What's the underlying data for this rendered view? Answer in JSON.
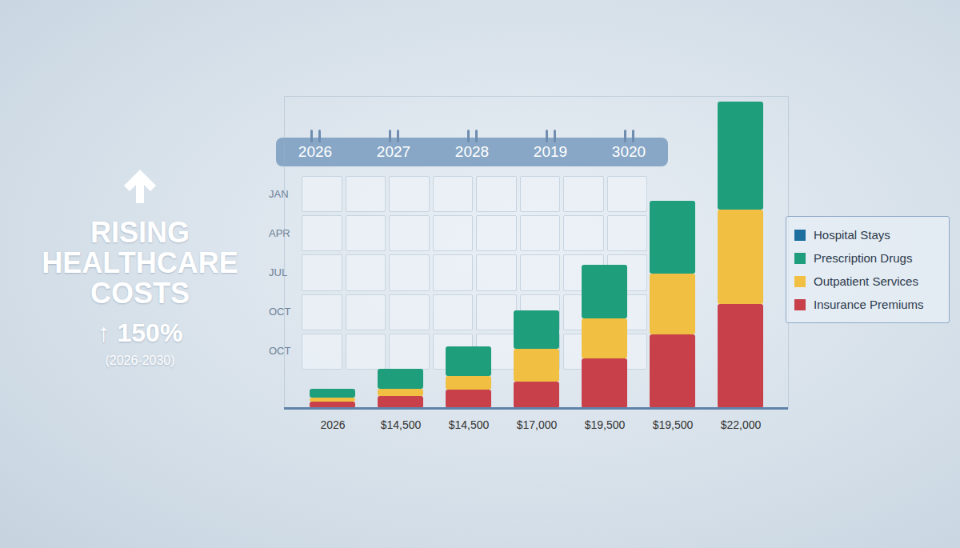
{
  "chart_data": {
    "type": "bar",
    "title": "RISING HEALTHCARE COSTS",
    "annotations": [
      "↑ 150%",
      "(2026-2030)"
    ],
    "categories": [
      "2026",
      "$14,500",
      "$14,500",
      "$17,000",
      "$19,500",
      "$19,500",
      "$22,000"
    ],
    "series": [
      {
        "name": "Hospital Stays",
        "color": "#1f6f9e",
        "values": [
          0,
          0,
          0,
          0,
          0,
          0,
          0
        ]
      },
      {
        "name": "Prescription Drugs",
        "color": "#1e9e7b",
        "values": [
          11,
          25,
          37,
          48,
          67,
          91,
          135
        ]
      },
      {
        "name": "Outpatient Services",
        "color": "#f1c042",
        "values": [
          5,
          9,
          17,
          41,
          50,
          76,
          118
        ]
      },
      {
        "name": "Insurance Premiums",
        "color": "#c7404a",
        "values": [
          8,
          15,
          23,
          33,
          62,
          92,
          130
        ]
      }
    ],
    "stacked": true,
    "ylim": [
      0,
      390
    ],
    "yticks": [],
    "tick_labels": "x",
    "grid": false,
    "legend": "right"
  },
  "calendar": {
    "years": [
      "2026",
      "2027",
      "2028",
      "2019",
      "3020"
    ],
    "months": [
      "JAN",
      "APR",
      "JUL",
      "OCT",
      "OCT"
    ]
  }
}
